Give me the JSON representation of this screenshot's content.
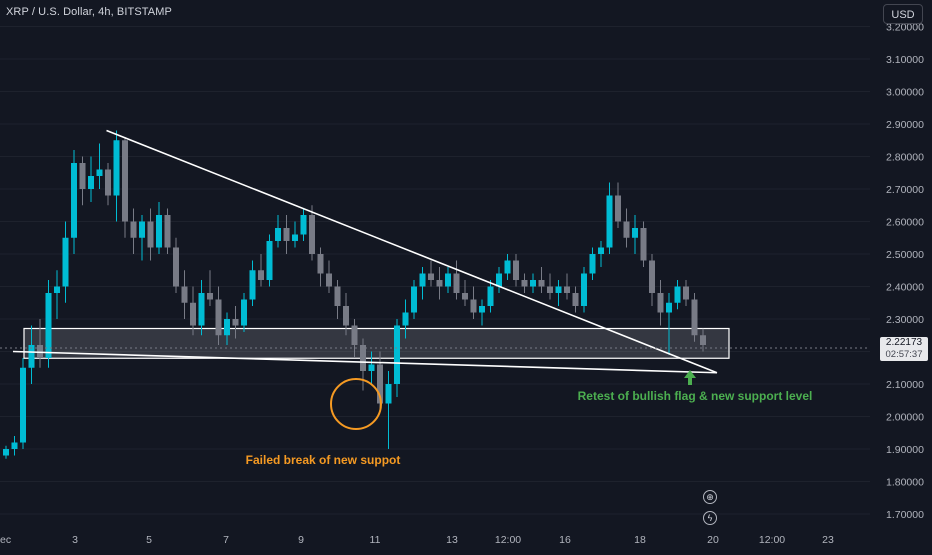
{
  "header": {
    "title": "XRP / U.S. Dollar, 4h, BITSTAMP"
  },
  "currency_button": "USD",
  "price_badge": {
    "price": "2.22173",
    "countdown": "02:57:37"
  },
  "colors": {
    "bull": "#26a69a",
    "bull_candle": "#00bcd4",
    "bear": "#787b86",
    "annotation_orange": "#f59a23",
    "annotation_green": "#4caf50",
    "background": "#131722"
  },
  "icons": {
    "lightning": "lightning-icon",
    "target": "crosshair-icon"
  },
  "chart_data": {
    "type": "candlestick",
    "symbol": "XRP / U.S. Dollar",
    "interval": "4h",
    "exchange": "BITSTAMP",
    "y_ticks": [
      "1.70000",
      "1.80000",
      "1.90000",
      "2.00000",
      "2.10000",
      "2.20000",
      "2.30000",
      "2.40000",
      "2.50000",
      "2.60000",
      "2.70000",
      "2.80000",
      "2.90000",
      "3.00000",
      "3.10000",
      "3.20000"
    ],
    "x_ticks": [
      "ec",
      "3",
      "5",
      "7",
      "9",
      "11",
      "13",
      "12:00",
      "16",
      "18",
      "20",
      "12:00",
      "23"
    ],
    "ylim": [
      1.66,
      3.22
    ],
    "candles": [
      [
        1.88,
        1.91,
        1.87,
        1.9
      ],
      [
        1.9,
        1.94,
        1.88,
        1.92
      ],
      [
        1.92,
        2.18,
        1.9,
        2.15
      ],
      [
        2.15,
        2.28,
        2.1,
        2.22
      ],
      [
        2.22,
        2.3,
        2.15,
        2.18
      ],
      [
        2.18,
        2.42,
        2.15,
        2.38
      ],
      [
        2.38,
        2.45,
        2.3,
        2.4
      ],
      [
        2.4,
        2.6,
        2.35,
        2.55
      ],
      [
        2.55,
        2.82,
        2.5,
        2.78
      ],
      [
        2.78,
        2.8,
        2.65,
        2.7
      ],
      [
        2.7,
        2.8,
        2.66,
        2.74
      ],
      [
        2.74,
        2.84,
        2.7,
        2.76
      ],
      [
        2.76,
        2.78,
        2.65,
        2.68
      ],
      [
        2.68,
        2.88,
        2.6,
        2.85
      ],
      [
        2.85,
        2.86,
        2.55,
        2.6
      ],
      [
        2.6,
        2.64,
        2.5,
        2.55
      ],
      [
        2.55,
        2.62,
        2.48,
        2.6
      ],
      [
        2.6,
        2.64,
        2.48,
        2.52
      ],
      [
        2.52,
        2.66,
        2.5,
        2.62
      ],
      [
        2.62,
        2.64,
        2.5,
        2.52
      ],
      [
        2.52,
        2.55,
        2.38,
        2.4
      ],
      [
        2.4,
        2.45,
        2.3,
        2.35
      ],
      [
        2.35,
        2.4,
        2.25,
        2.28
      ],
      [
        2.28,
        2.42,
        2.25,
        2.38
      ],
      [
        2.38,
        2.45,
        2.34,
        2.36
      ],
      [
        2.36,
        2.4,
        2.22,
        2.25
      ],
      [
        2.25,
        2.32,
        2.22,
        2.3
      ],
      [
        2.3,
        2.34,
        2.24,
        2.28
      ],
      [
        2.28,
        2.38,
        2.26,
        2.36
      ],
      [
        2.36,
        2.48,
        2.34,
        2.45
      ],
      [
        2.45,
        2.5,
        2.4,
        2.42
      ],
      [
        2.42,
        2.56,
        2.4,
        2.54
      ],
      [
        2.54,
        2.62,
        2.52,
        2.58
      ],
      [
        2.58,
        2.62,
        2.5,
        2.54
      ],
      [
        2.54,
        2.6,
        2.52,
        2.56
      ],
      [
        2.56,
        2.64,
        2.54,
        2.62
      ],
      [
        2.62,
        2.65,
        2.48,
        2.5
      ],
      [
        2.5,
        2.52,
        2.4,
        2.44
      ],
      [
        2.44,
        2.48,
        2.38,
        2.4
      ],
      [
        2.4,
        2.42,
        2.3,
        2.34
      ],
      [
        2.34,
        2.38,
        2.25,
        2.28
      ],
      [
        2.28,
        2.3,
        2.18,
        2.22
      ],
      [
        2.22,
        2.24,
        2.08,
        2.14
      ],
      [
        2.14,
        2.2,
        2.1,
        2.16
      ],
      [
        2.16,
        2.2,
        2.02,
        2.04
      ],
      [
        2.04,
        2.14,
        1.9,
        2.1
      ],
      [
        2.1,
        2.3,
        2.06,
        2.28
      ],
      [
        2.28,
        2.36,
        2.24,
        2.32
      ],
      [
        2.32,
        2.42,
        2.3,
        2.4
      ],
      [
        2.4,
        2.46,
        2.36,
        2.44
      ],
      [
        2.44,
        2.48,
        2.4,
        2.42
      ],
      [
        2.42,
        2.46,
        2.36,
        2.4
      ],
      [
        2.4,
        2.46,
        2.38,
        2.44
      ],
      [
        2.44,
        2.48,
        2.36,
        2.38
      ],
      [
        2.38,
        2.42,
        2.34,
        2.36
      ],
      [
        2.36,
        2.4,
        2.3,
        2.32
      ],
      [
        2.32,
        2.36,
        2.28,
        2.34
      ],
      [
        2.34,
        2.42,
        2.32,
        2.4
      ],
      [
        2.4,
        2.46,
        2.38,
        2.44
      ],
      [
        2.44,
        2.5,
        2.42,
        2.48
      ],
      [
        2.48,
        2.5,
        2.4,
        2.42
      ],
      [
        2.42,
        2.44,
        2.38,
        2.4
      ],
      [
        2.4,
        2.44,
        2.38,
        2.42
      ],
      [
        2.42,
        2.46,
        2.38,
        2.4
      ],
      [
        2.4,
        2.44,
        2.36,
        2.38
      ],
      [
        2.38,
        2.42,
        2.34,
        2.4
      ],
      [
        2.4,
        2.44,
        2.36,
        2.38
      ],
      [
        2.38,
        2.4,
        2.32,
        2.34
      ],
      [
        2.34,
        2.46,
        2.32,
        2.44
      ],
      [
        2.44,
        2.52,
        2.42,
        2.5
      ],
      [
        2.5,
        2.54,
        2.46,
        2.52
      ],
      [
        2.52,
        2.72,
        2.5,
        2.68
      ],
      [
        2.68,
        2.72,
        2.58,
        2.6
      ],
      [
        2.6,
        2.64,
        2.52,
        2.55
      ],
      [
        2.55,
        2.62,
        2.5,
        2.58
      ],
      [
        2.58,
        2.6,
        2.46,
        2.48
      ],
      [
        2.48,
        2.5,
        2.34,
        2.38
      ],
      [
        2.38,
        2.42,
        2.28,
        2.32
      ],
      [
        2.32,
        2.38,
        2.19,
        2.35
      ],
      [
        2.35,
        2.42,
        2.33,
        2.4
      ],
      [
        2.4,
        2.42,
        2.34,
        2.36
      ],
      [
        2.36,
        2.38,
        2.23,
        2.25
      ],
      [
        2.25,
        2.27,
        2.2,
        2.22
      ]
    ],
    "support_zone": [
      2.21,
      2.24
    ],
    "trendlines": [
      {
        "from_candle": 13,
        "from_price": 2.88,
        "to_candle": 86,
        "to_price": 2.19
      },
      {
        "from_candle": 2,
        "from_price": 2.2,
        "to_candle": 86,
        "to_price": 2.19
      }
    ],
    "annotations": [
      {
        "text": "Failed break of new suppot",
        "color": "#f59a23"
      },
      {
        "text": "Retest of bullish flag & new support level",
        "color": "#4caf50"
      }
    ]
  }
}
